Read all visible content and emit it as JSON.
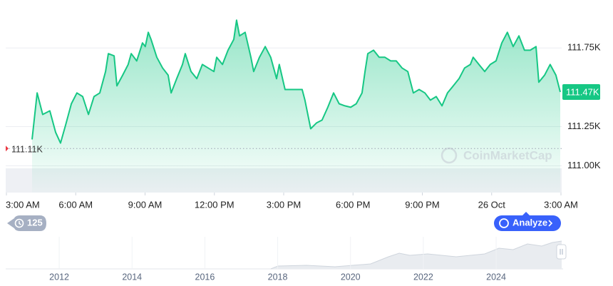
{
  "chart_data": {
    "type": "area",
    "color": "#16c784",
    "x": [
      1.11,
      1.33,
      1.57,
      1.88,
      2.13,
      2.34,
      2.56,
      2.81,
      3.05,
      3.3,
      3.55,
      3.79,
      4.04,
      4.29,
      4.41,
      4.66,
      4.78,
      5.03,
      5.27,
      5.4,
      5.64,
      5.89,
      6.01,
      6.14,
      6.26,
      6.51,
      6.76,
      7.0,
      7.13,
      7.37,
      7.62,
      7.74,
      7.99,
      8.24,
      8.48,
      8.73,
      8.98,
      9.1,
      9.35,
      9.59,
      9.84,
      9.96,
      10.09,
      10.33,
      10.58,
      10.7,
      10.95,
      11.2,
      11.44,
      11.69,
      11.81,
      12.06,
      12.31,
      12.55,
      12.8,
      12.92,
      13.17,
      13.42,
      13.66,
      13.91,
      14.16,
      14.4,
      14.65,
      14.9,
      15.14,
      15.39,
      15.52,
      15.64,
      15.89,
      16.13,
      16.38,
      16.63,
      16.87,
      17.12,
      17.37,
      17.61,
      17.86,
      18.11,
      18.35,
      18.6,
      18.85,
      19.09,
      19.34,
      19.59,
      19.83,
      20.08,
      20.2,
      20.45,
      20.7,
      20.94,
      21.19,
      21.44,
      21.68,
      21.93,
      22.18,
      22.42,
      22.67,
      22.92,
      23.04,
      23.29,
      23.53,
      23.78,
      23.97
    ],
    "series": [
      {
        "name": "Price",
        "color": "#16c784",
        "values": [
          111168,
          111464,
          111327,
          111350,
          111214,
          111145,
          111259,
          111395,
          111464,
          111441,
          111327,
          111441,
          111464,
          111600,
          111714,
          111700,
          111509,
          111577,
          111645,
          111714,
          111668,
          111782,
          111759,
          111850,
          111805,
          111691,
          111623,
          111577,
          111464,
          111555,
          111645,
          111714,
          111600,
          111555,
          111645,
          111623,
          111600,
          111691,
          111645,
          111736,
          111805,
          111927,
          111827,
          111850,
          111691,
          111600,
          111691,
          111759,
          111691,
          111555,
          111645,
          111486,
          111486,
          111486,
          111486,
          111418,
          111236,
          111273,
          111291,
          111373,
          111464,
          111395,
          111382,
          111373,
          111395,
          111464,
          111600,
          111714,
          111736,
          111691,
          111691,
          111668,
          111668,
          111623,
          111600,
          111464,
          111486,
          111464,
          111418,
          111441,
          111382,
          111464,
          111509,
          111555,
          111623,
          111645,
          111691,
          111645,
          111600,
          111645,
          111668,
          111782,
          111850,
          111759,
          111827,
          111736,
          111736,
          111759,
          111532,
          111577,
          111645,
          111577,
          111470
        ]
      }
    ],
    "xlim": [
      0,
      24
    ],
    "xticks": [
      {
        "value": 0,
        "label": "3:00 AM"
      },
      {
        "value": 3,
        "label": "6:00 AM"
      },
      {
        "value": 6,
        "label": "9:00 AM"
      },
      {
        "value": 9,
        "label": "12:00 PM"
      },
      {
        "value": 12,
        "label": "3:00 PM"
      },
      {
        "value": 15,
        "label": "6:00 PM"
      },
      {
        "value": 18,
        "label": "9:00 PM"
      },
      {
        "value": 21,
        "label": "26 Oct"
      },
      {
        "value": 24,
        "label": "3:00 AM"
      }
    ],
    "ylim": [
      110830,
      112010
    ],
    "yticks": [
      {
        "value": 111000,
        "label": "111.00K"
      },
      {
        "value": 111250,
        "label": "111.25K"
      },
      {
        "value": 111750,
        "label": "111.75K"
      }
    ],
    "grid": true,
    "reference_line": {
      "value": 111110,
      "label": "111.11K"
    },
    "last_price": {
      "value": 111470,
      "label": "111.47K"
    },
    "navigator_xlim": [
      2010.53,
      2025.8
    ],
    "navigator_xticks": [
      2012,
      2014,
      2016,
      2018,
      2020,
      2022,
      2024
    ]
  },
  "ui": {
    "watermark": "CoinMarketCap",
    "history_count": 125,
    "analyze_button": "Analyze"
  }
}
